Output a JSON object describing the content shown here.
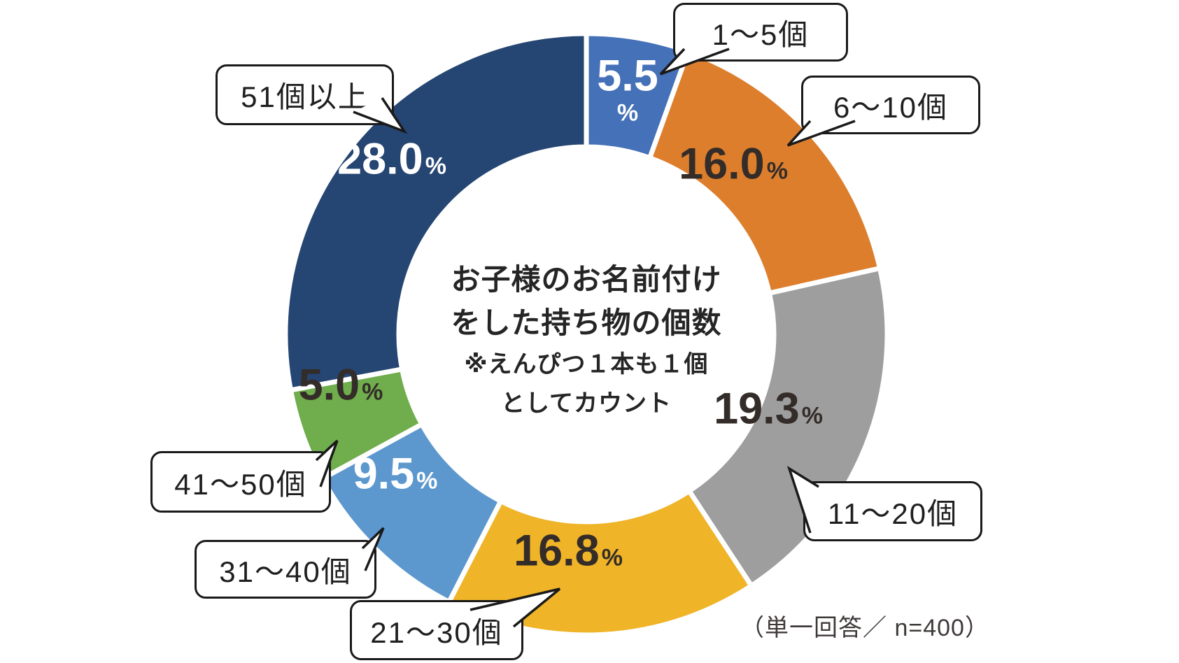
{
  "chart_data": {
    "type": "pie",
    "donut": true,
    "center_title_lines": [
      "お子様のお名前付け",
      "をした持ち物の個数"
    ],
    "center_note_lines": [
      "※えんぴつ１本も１個",
      "としてカウント"
    ],
    "note": "（単一回答／ n=400）",
    "unit": "%",
    "categories": [
      "1〜5個",
      "6〜10個",
      "11〜20個",
      "21〜30個",
      "31〜40個",
      "41〜50個",
      "51個以上"
    ],
    "values": [
      5.5,
      16.0,
      19.3,
      16.8,
      9.5,
      5.0,
      28.0
    ],
    "value_labels": [
      "5.5",
      "16.0",
      "19.3",
      "16.8",
      "9.5",
      "5.0",
      "28.0"
    ],
    "colors": [
      "#4471B7",
      "#DD7E2D",
      "#9E9E9E",
      "#EFB428",
      "#5C98CE",
      "#6FAD4D",
      "#254572"
    ],
    "value_text_colors": [
      "#FFFFFF",
      "#332C28",
      "#332C28",
      "#332C28",
      "#FFFFFF",
      "#332C28",
      "#FFFFFF"
    ],
    "legend_position": "callout-bubbles",
    "start_angle_deg": 0,
    "direction": "clockwise"
  }
}
